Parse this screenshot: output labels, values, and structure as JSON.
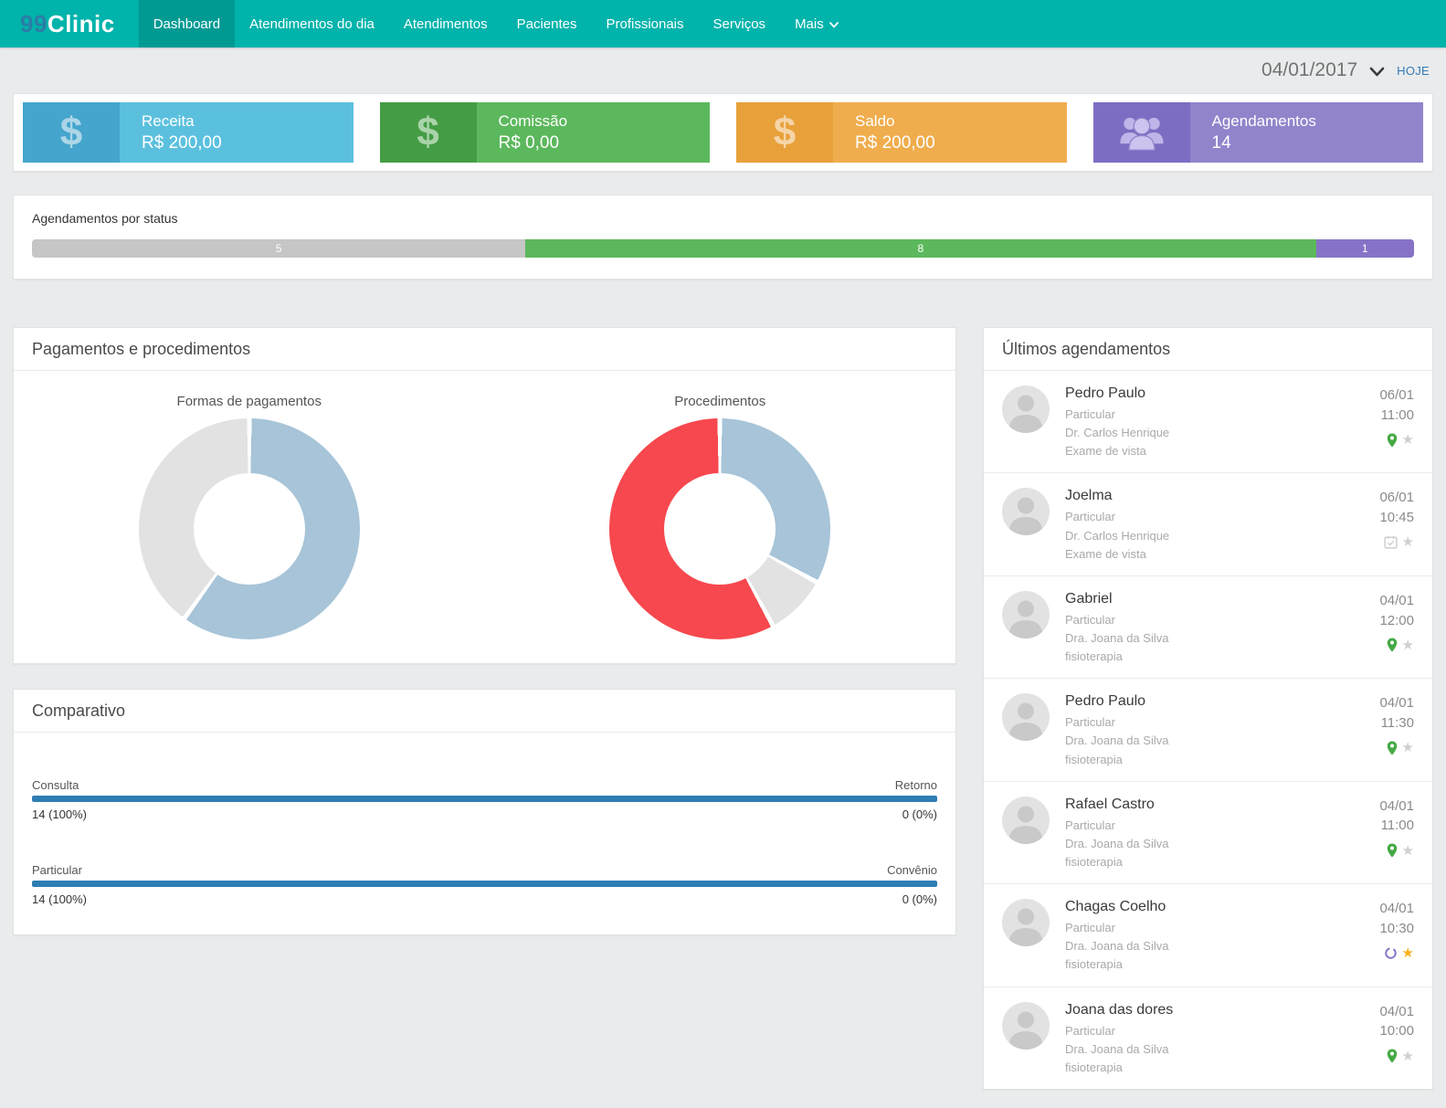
{
  "theme": {
    "page_bg": "#e9ebec",
    "teal": "#00b3ab",
    "teal_dark": "#009a93",
    "logo_blue": "#2a7da6",
    "link_blue": "#337ab7",
    "compare_bar_blue": "#2e7db3",
    "pin_green": "#45a945",
    "star_gray": "#cfcfcf",
    "star_gold": "#fbb117",
    "ring_purple": "#8673c8",
    "calendar_gray": "#cfcfcf"
  },
  "navbar": {
    "logo_prefix": "99",
    "logo_suffix": "Clinic",
    "items": [
      {
        "label": "Dashboard",
        "active": true,
        "caret": false
      },
      {
        "label": "Atendimentos do dia",
        "active": false,
        "caret": false
      },
      {
        "label": "Atendimentos",
        "active": false,
        "caret": false
      },
      {
        "label": "Pacientes",
        "active": false,
        "caret": false
      },
      {
        "label": "Profissionais",
        "active": false,
        "caret": false
      },
      {
        "label": "Serviços",
        "active": false,
        "caret": false
      },
      {
        "label": "Mais",
        "active": false,
        "caret": true
      }
    ]
  },
  "date_bar": {
    "date": "04/01/2017",
    "today_label": "HOJE"
  },
  "stat_cards": [
    {
      "title": "Receita",
      "value": "R$ 200,00",
      "icon": "dollar-icon",
      "bg": "#5bc0de",
      "icon_bg": "#45a5cc"
    },
    {
      "title": "Comissão",
      "value": "R$ 0,00",
      "icon": "dollar-icon",
      "bg": "#5cb85c",
      "icon_bg": "#449d44"
    },
    {
      "title": "Saldo",
      "value": "R$ 200,00",
      "icon": "dollar-icon",
      "bg": "#f0ad4e",
      "icon_bg": "#e8a03a"
    },
    {
      "title": "Agendamentos",
      "value": "14",
      "icon": "users-icon",
      "bg": "#9184cb",
      "icon_bg": "#7e6cc3"
    }
  ],
  "status_panel": {
    "title": "Agendamentos por status",
    "total": 14,
    "segments": [
      {
        "value": 5,
        "pct": 35.7,
        "color": "#c6c6c6"
      },
      {
        "value": 8,
        "pct": 57.2,
        "color": "#5cb85c"
      },
      {
        "value": 1,
        "pct": 7.1,
        "color": "#8673c8"
      }
    ]
  },
  "payments_panel": {
    "title": "Pagamentos e procedimentos"
  },
  "chart_data": [
    {
      "type": "pie",
      "subtype": "donut",
      "title": "Formas de pagamentos",
      "legend": false,
      "segments": [
        {
          "pct": 60,
          "color": "#a7c4d8"
        },
        {
          "pct": 40,
          "color": "#e2e2e2"
        }
      ]
    },
    {
      "type": "pie",
      "subtype": "donut",
      "title": "Procedimentos",
      "legend": false,
      "segments": [
        {
          "pct": 33,
          "color": "#a7c4d8"
        },
        {
          "pct": 9,
          "color": "#e2e2e2"
        },
        {
          "pct": 58,
          "color": "#f6484e"
        }
      ]
    }
  ],
  "comparativo": {
    "title": "Comparativo",
    "rows": [
      {
        "left_label": "Consulta",
        "right_label": "Retorno",
        "left_value": "14 (100%)",
        "right_value": "0 (0%)",
        "left_pct": 100
      },
      {
        "left_label": "Particular",
        "right_label": "Convênio",
        "left_value": "14 (100%)",
        "right_value": "0 (0%)",
        "left_pct": 100
      }
    ]
  },
  "appointments": {
    "title": "Últimos agendamentos",
    "items": [
      {
        "name": "Pedro Paulo",
        "payment": "Particular",
        "professional": "Dr. Carlos Henrique",
        "procedure": "Exame de vista",
        "date": "06/01",
        "time": "11:00",
        "status_icon": "pin",
        "star": "gray"
      },
      {
        "name": "Joelma",
        "payment": "Particular",
        "professional": "Dr. Carlos Henrique",
        "procedure": "Exame de vista",
        "date": "06/01",
        "time": "10:45",
        "status_icon": "calendar",
        "star": "gray"
      },
      {
        "name": "Gabriel",
        "payment": "Particular",
        "professional": "Dra. Joana da Silva",
        "procedure": "fisioterapia",
        "date": "04/01",
        "time": "12:00",
        "status_icon": "pin",
        "star": "gray"
      },
      {
        "name": "Pedro Paulo",
        "payment": "Particular",
        "professional": "Dra. Joana da Silva",
        "procedure": "fisioterapia",
        "date": "04/01",
        "time": "11:30",
        "status_icon": "pin",
        "star": "gray"
      },
      {
        "name": "Rafael Castro",
        "payment": "Particular",
        "professional": "Dra. Joana da Silva",
        "procedure": "fisioterapia",
        "date": "04/01",
        "time": "11:00",
        "status_icon": "pin",
        "star": "gray"
      },
      {
        "name": "Chagas Coelho",
        "payment": "Particular",
        "professional": "Dra. Joana da Silva",
        "procedure": "fisioterapia",
        "date": "04/01",
        "time": "10:30",
        "status_icon": "ring",
        "star": "gold"
      },
      {
        "name": "Joana das dores",
        "payment": "Particular",
        "professional": "Dra. Joana da Silva",
        "procedure": "fisioterapia",
        "date": "04/01",
        "time": "10:00",
        "status_icon": "pin",
        "star": "gray"
      }
    ]
  }
}
